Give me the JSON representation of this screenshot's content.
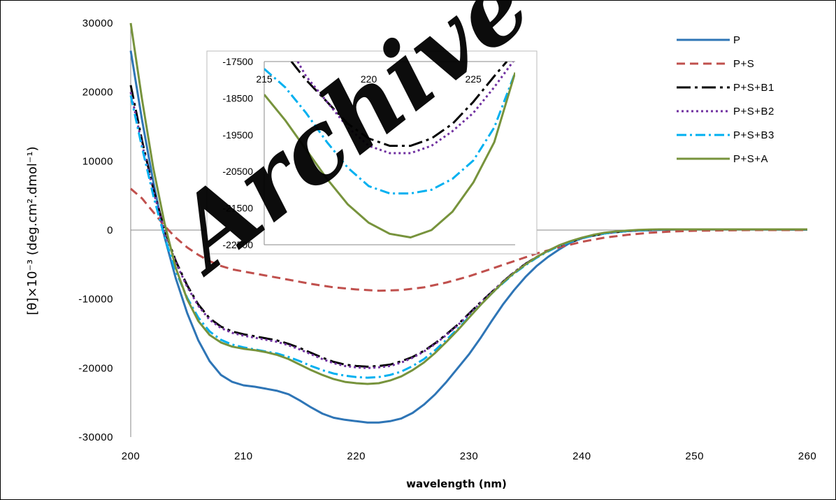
{
  "chart_data": {
    "type": "line",
    "xlabel": "wavelength (nm)",
    "ylabel": "[θ]×10⁻³ (deg.cm².dmol⁻¹)",
    "xlim": [
      200,
      260
    ],
    "ylim": [
      -30000,
      30000
    ],
    "x_ticks": [
      "200",
      "210",
      "220",
      "230",
      "240",
      "250",
      "260"
    ],
    "y_ticks": [
      "30000",
      "20000",
      "10000",
      "0",
      "-10000",
      "-20000",
      "-30000"
    ],
    "grid": false,
    "legend_position": "top-right",
    "series": [
      {
        "name": "P",
        "color": "#2e75b6",
        "dash": "solid",
        "x": [
          200,
          201,
          202,
          203,
          204,
          205,
          206,
          207,
          208,
          209,
          210,
          211,
          212,
          213,
          214,
          215,
          216,
          217,
          218,
          219,
          220,
          221,
          222,
          223,
          224,
          225,
          226,
          227,
          228,
          229,
          230,
          231,
          232,
          233,
          234,
          235,
          236,
          237,
          238,
          239,
          240,
          241,
          242,
          243,
          244,
          245,
          246,
          247,
          248,
          249,
          250,
          255,
          260
        ],
        "y": [
          26000,
          16000,
          7000,
          -1000,
          -7000,
          -12000,
          -16000,
          -19000,
          -21000,
          -22000,
          -22500,
          -22700,
          -23000,
          -23300,
          -23800,
          -24700,
          -25700,
          -26600,
          -27200,
          -27500,
          -27700,
          -27900,
          -27900,
          -27700,
          -27300,
          -26500,
          -25300,
          -23800,
          -22000,
          -20000,
          -18000,
          -15700,
          -13200,
          -10800,
          -8700,
          -6800,
          -5200,
          -3900,
          -2800,
          -1800,
          -1200,
          -800,
          -500,
          -300,
          -150,
          -80,
          -20,
          30,
          60,
          80,
          80,
          80,
          50
        ]
      },
      {
        "name": "P+S",
        "color": "#c0504d",
        "dash": "dashed",
        "x": [
          200,
          201,
          202,
          203,
          204,
          205,
          206,
          207,
          208,
          209,
          210,
          212,
          214,
          216,
          218,
          220,
          222,
          224,
          226,
          228,
          230,
          232,
          234,
          236,
          238,
          240,
          242,
          244,
          246,
          248,
          250,
          255,
          260
        ],
        "y": [
          6000,
          4600,
          2600,
          600,
          -1100,
          -2500,
          -3600,
          -4500,
          -5200,
          -5700,
          -6000,
          -6600,
          -7200,
          -7800,
          -8300,
          -8600,
          -8800,
          -8700,
          -8300,
          -7600,
          -6700,
          -5600,
          -4500,
          -3400,
          -2500,
          -1700,
          -1100,
          -700,
          -400,
          -200,
          -100,
          0,
          0
        ]
      },
      {
        "name": "P+S+B1",
        "color": "#000000",
        "dash": "longdash",
        "x": [
          200,
          201,
          202,
          203,
          204,
          205,
          206,
          207,
          208,
          209,
          210,
          211,
          212,
          213,
          214,
          215,
          216,
          217,
          218,
          219,
          220,
          221,
          222,
          223,
          224,
          225,
          226,
          227,
          228,
          229,
          230,
          231,
          232,
          233,
          234,
          235,
          236,
          237,
          238,
          239,
          240,
          241,
          242,
          243,
          244,
          245,
          246,
          247,
          248,
          249,
          250,
          255,
          260
        ],
        "y": [
          21000,
          13000,
          6000,
          0,
          -4500,
          -8000,
          -10800,
          -12800,
          -14000,
          -14700,
          -15100,
          -15400,
          -15700,
          -16000,
          -16500,
          -17100,
          -17800,
          -18500,
          -19100,
          -19500,
          -19700,
          -19800,
          -19700,
          -19500,
          -19000,
          -18400,
          -17500,
          -16400,
          -15100,
          -13700,
          -12100,
          -10500,
          -9000,
          -7500,
          -6100,
          -4900,
          -3900,
          -3000,
          -2300,
          -1700,
          -1200,
          -800,
          -500,
          -300,
          -150,
          -50,
          30,
          80,
          100,
          100,
          100,
          100,
          100
        ]
      },
      {
        "name": "P+S+B2",
        "color": "#7030a0",
        "dash": "dotted",
        "x": [
          200,
          201,
          202,
          203,
          204,
          205,
          206,
          207,
          208,
          209,
          210,
          211,
          212,
          213,
          214,
          215,
          216,
          217,
          218,
          219,
          220,
          221,
          222,
          223,
          224,
          225,
          226,
          227,
          228,
          229,
          230,
          231,
          232,
          233,
          234,
          235,
          236,
          237,
          238,
          239,
          240,
          241,
          242,
          243,
          244,
          245,
          246,
          247,
          248,
          249,
          250,
          255,
          260
        ],
        "y": [
          20000,
          12500,
          5700,
          -200,
          -4700,
          -8200,
          -11000,
          -13000,
          -14200,
          -14900,
          -15300,
          -15600,
          -15900,
          -16200,
          -16700,
          -17300,
          -18000,
          -18700,
          -19300,
          -19700,
          -19900,
          -20000,
          -19900,
          -19700,
          -19200,
          -18500,
          -17600,
          -16500,
          -15200,
          -13800,
          -12200,
          -10600,
          -9000,
          -7500,
          -6100,
          -4900,
          -3900,
          -3000,
          -2300,
          -1700,
          -1200,
          -800,
          -500,
          -300,
          -150,
          -50,
          30,
          80,
          100,
          100,
          100,
          100,
          100
        ]
      },
      {
        "name": "P+S+B3",
        "color": "#00b0f0",
        "dash": "dashdot",
        "x": [
          200,
          201,
          202,
          203,
          204,
          205,
          206,
          207,
          208,
          209,
          210,
          211,
          212,
          213,
          214,
          215,
          216,
          217,
          218,
          219,
          220,
          221,
          222,
          223,
          224,
          225,
          226,
          227,
          228,
          229,
          230,
          231,
          232,
          233,
          234,
          235,
          236,
          237,
          238,
          239,
          240,
          241,
          242,
          243,
          244,
          245,
          246,
          247,
          248,
          249,
          250,
          255,
          260
        ],
        "y": [
          19500,
          12000,
          5000,
          -1000,
          -6000,
          -9800,
          -12700,
          -14700,
          -15900,
          -16600,
          -17000,
          -17300,
          -17600,
          -17900,
          -18400,
          -19000,
          -19700,
          -20300,
          -20800,
          -21100,
          -21300,
          -21400,
          -21300,
          -21000,
          -20500,
          -19700,
          -18700,
          -17400,
          -15900,
          -14300,
          -12600,
          -10900,
          -9200,
          -7700,
          -6300,
          -5100,
          -4000,
          -3100,
          -2300,
          -1700,
          -1200,
          -800,
          -500,
          -300,
          -150,
          -50,
          30,
          80,
          100,
          100,
          100,
          100,
          100
        ]
      },
      {
        "name": "P+S+A",
        "color": "#77933c",
        "dash": "solid",
        "x": [
          200,
          201,
          202,
          203,
          204,
          205,
          206,
          207,
          208,
          209,
          210,
          211,
          212,
          213,
          214,
          215,
          216,
          217,
          218,
          219,
          220,
          221,
          222,
          223,
          224,
          225,
          226,
          227,
          228,
          229,
          230,
          231,
          232,
          233,
          234,
          235,
          236,
          237,
          238,
          239,
          240,
          241,
          242,
          243,
          244,
          245,
          246,
          247,
          248,
          249,
          250,
          255,
          260
        ],
        "y": [
          30000,
          19000,
          9000,
          1000,
          -5500,
          -10000,
          -13200,
          -15200,
          -16300,
          -16900,
          -17200,
          -17400,
          -17700,
          -18100,
          -18700,
          -19500,
          -20300,
          -21000,
          -21600,
          -22000,
          -22200,
          -22300,
          -22200,
          -21800,
          -21200,
          -20300,
          -19200,
          -17800,
          -16200,
          -14500,
          -12700,
          -10900,
          -9200,
          -7600,
          -6200,
          -5000,
          -3900,
          -3000,
          -2200,
          -1600,
          -1100,
          -700,
          -400,
          -200,
          -80,
          20,
          80,
          100,
          100,
          100,
          100,
          100,
          100
        ]
      }
    ],
    "inset": {
      "xlim": [
        215,
        227
      ],
      "ylim": [
        -22500,
        -17500
      ],
      "x_ticks": [
        "215",
        "220",
        "225"
      ],
      "y_ticks": [
        "-17500",
        "-18500",
        "-19500",
        "-20500",
        "-21500",
        "-22500"
      ],
      "series": [
        {
          "name": "P+S+B1",
          "x": [
            216.3,
            217,
            218,
            219,
            220,
            221,
            222,
            223,
            224,
            225,
            226,
            226.6
          ],
          "y": [
            -17500,
            -18000,
            -18600,
            -19200,
            -19600,
            -19800,
            -19800,
            -19600,
            -19200,
            -18600,
            -17900,
            -17500
          ]
        },
        {
          "name": "P+S+B2",
          "x": [
            216.6,
            217,
            218,
            219,
            220,
            221,
            222,
            223,
            224,
            225,
            226,
            226.9
          ],
          "y": [
            -17500,
            -17900,
            -18600,
            -19300,
            -19800,
            -20000,
            -20000,
            -19800,
            -19400,
            -18900,
            -18200,
            -17500
          ]
        },
        {
          "name": "P+S+B3",
          "x": [
            215,
            216,
            217,
            218,
            219,
            220,
            221,
            222,
            223,
            224,
            225,
            226,
            227
          ],
          "y": [
            -17700,
            -18200,
            -18900,
            -19700,
            -20400,
            -20900,
            -21100,
            -21100,
            -21000,
            -20700,
            -20200,
            -19300,
            -17800
          ]
        },
        {
          "name": "P+S+A",
          "x": [
            215,
            216,
            217,
            218,
            219,
            220,
            221,
            222,
            223,
            224,
            225,
            226,
            227
          ],
          "y": [
            -18400,
            -19100,
            -19900,
            -20700,
            -21400,
            -21900,
            -22200,
            -22300,
            -22100,
            -21600,
            -20800,
            -19700,
            -17800
          ]
        }
      ]
    },
    "watermark": "Archive"
  }
}
